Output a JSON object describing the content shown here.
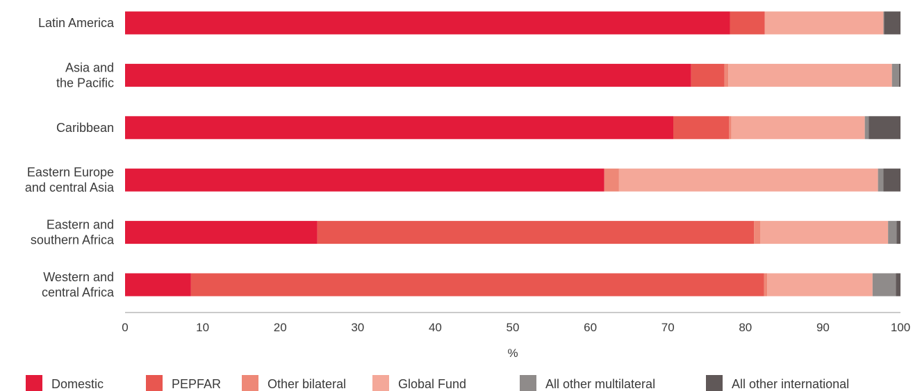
{
  "chart_data": {
    "type": "bar",
    "orientation": "horizontal",
    "stacked": true,
    "categories": [
      "Latin America",
      "Asia and the Pacific",
      "Caribbean",
      "Eastern Europe and central Asia",
      "Eastern and southern Africa",
      "Western and central Africa"
    ],
    "category_lines": [
      [
        "Latin America"
      ],
      [
        "Asia and",
        "the Pacific"
      ],
      [
        "Caribbean"
      ],
      [
        "Eastern Europe",
        "and central Asia"
      ],
      [
        "Eastern and",
        "southern Africa"
      ],
      [
        "Western and",
        "central Africa"
      ]
    ],
    "series": [
      {
        "name": "Domestic",
        "color": "#E31B3A",
        "values": [
          78,
          73,
          70.7,
          61.8,
          24.8,
          8.5
        ]
      },
      {
        "name": "PEPFAR",
        "color": "#E85750",
        "values": [
          4.5,
          4.3,
          7.2,
          0,
          56.3,
          73.9
        ]
      },
      {
        "name": "Other bilateral",
        "color": "#EE8877",
        "values": [
          0,
          0.5,
          0.3,
          1.9,
          0.8,
          0.4
        ]
      },
      {
        "name": "Global Fund",
        "color": "#F4A899",
        "values": [
          15.3,
          21.1,
          17.2,
          33.4,
          16.5,
          13.6
        ]
      },
      {
        "name": "All other multilateral",
        "color": "#8F8B8A",
        "values": [
          0.1,
          0.9,
          0.5,
          0.7,
          1.1,
          3
        ]
      },
      {
        "name": "All other international",
        "color": "#605858",
        "values": [
          2.1,
          0.2,
          4.1,
          2.2,
          0.5,
          0.6
        ]
      }
    ],
    "xlim": [
      0,
      100
    ],
    "xticks": [
      0,
      10,
      20,
      30,
      40,
      50,
      60,
      70,
      80,
      90,
      100
    ],
    "xlabel": "%",
    "ylabel": "",
    "grid": false,
    "legend_position": "bottom"
  }
}
